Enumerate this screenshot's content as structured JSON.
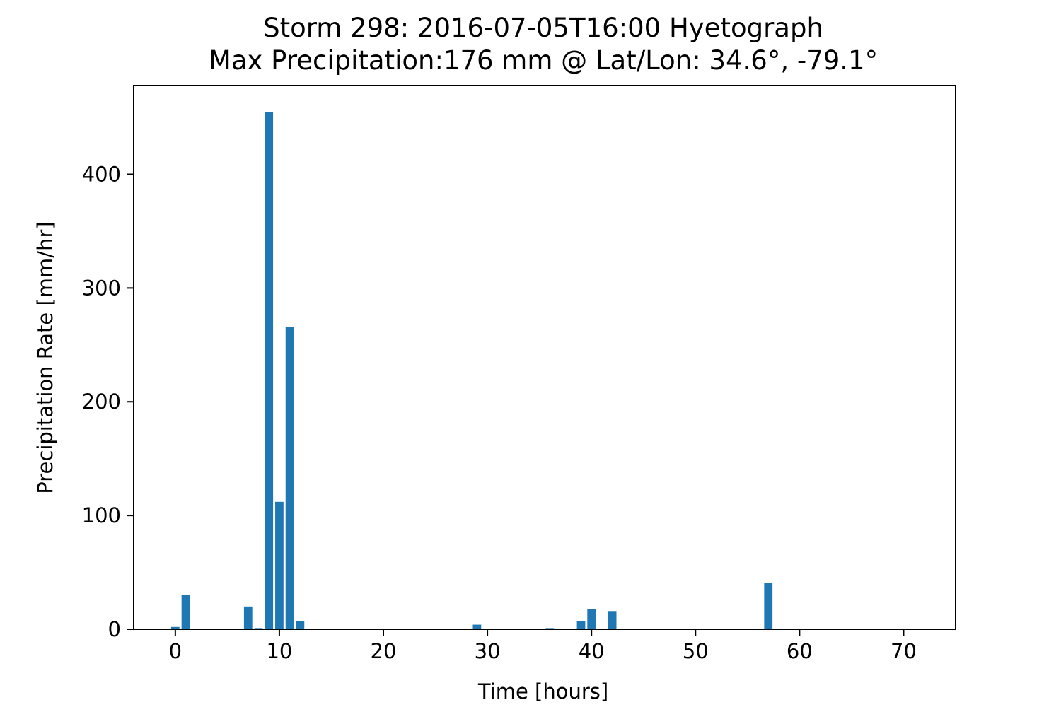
{
  "chart_data": {
    "type": "bar",
    "title": "Storm 298: 2016-07-05T16:00 Hyetograph",
    "subtitle": "Max Precipitation:176 mm @ Lat/Lon:  34.6°, -79.1°",
    "xlabel": "Time [hours]",
    "ylabel": "Precipitation Rate [mm/hr]",
    "xlim": [
      -4,
      75
    ],
    "ylim": [
      0,
      478
    ],
    "x_ticks": [
      0,
      10,
      20,
      30,
      40,
      50,
      60,
      70
    ],
    "y_ticks": [
      0,
      100,
      200,
      300,
      400
    ],
    "grid": false,
    "bar_color": "#1f77b4",
    "x": [
      0,
      1,
      7,
      8,
      9,
      10,
      11,
      12,
      29,
      36,
      39,
      40,
      42,
      57
    ],
    "values": [
      2,
      30,
      20,
      1,
      455,
      112,
      266,
      7,
      4,
      1,
      7,
      18,
      16,
      41
    ]
  }
}
